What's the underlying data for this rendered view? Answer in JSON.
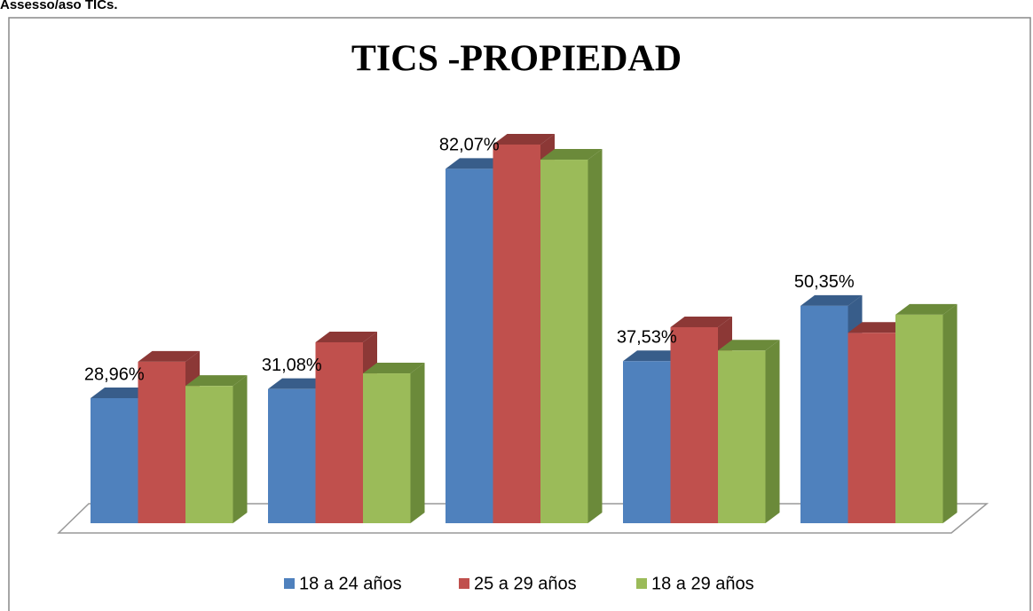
{
  "header": "Assesso/aso TICs.",
  "chart_data": {
    "type": "bar3d",
    "title": "TICS -PROPIEDAD",
    "categories": [
      null,
      null,
      null,
      null,
      null
    ],
    "series": [
      {
        "name": "18 a 24 años",
        "color": "#4f81bd",
        "side": "#385d8a",
        "values": [
          28.96,
          31.08,
          82.07,
          37.53,
          50.35
        ],
        "value_labels": [
          "28,96%",
          "31,08%",
          "82,07%",
          "37,53%",
          "50,35%"
        ]
      },
      {
        "name": "25 a 29 años",
        "color": "#c0504d",
        "side": "#8c3836",
        "values": [
          37.4,
          41.9,
          87.7,
          45.4,
          44.1
        ]
      },
      {
        "name": "18 a 29 años",
        "color": "#9bbb59",
        "side": "#6b8a3a",
        "values": [
          31.8,
          34.7,
          84.2,
          40.0,
          48.3
        ]
      }
    ],
    "legend": "bottom"
  }
}
